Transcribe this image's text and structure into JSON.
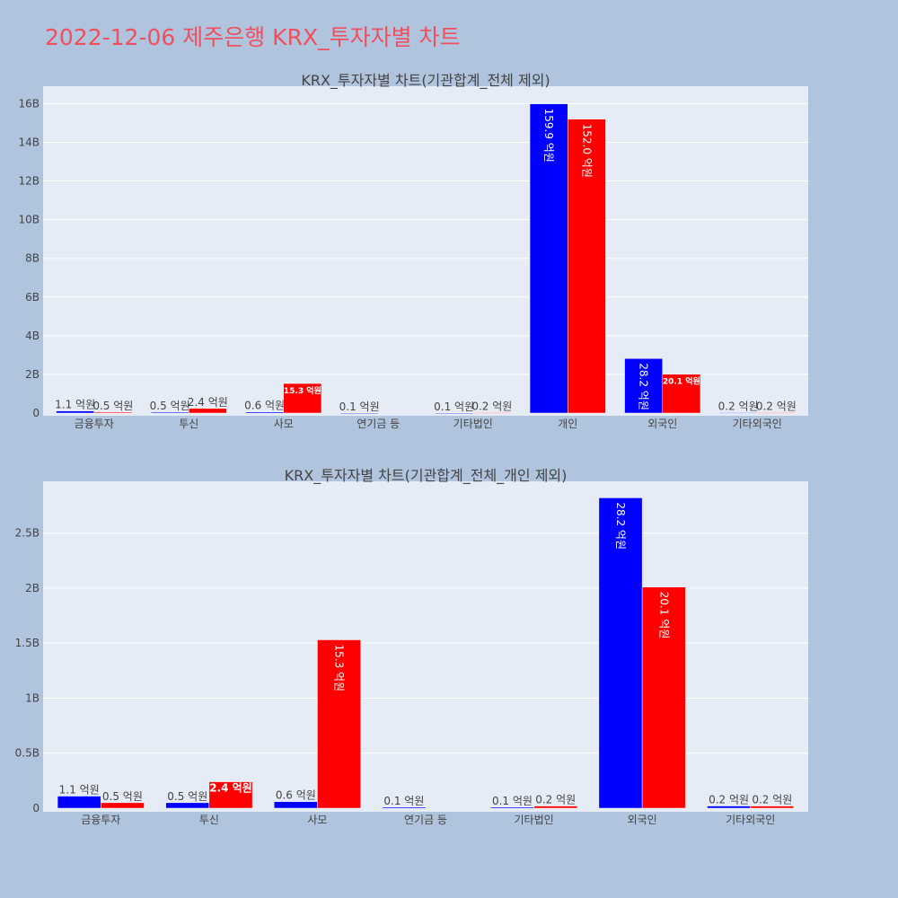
{
  "page": {
    "title": "2022-12-06 제주은행 KRX_투자자별 차트"
  },
  "colors": {
    "buy": "#0000ff",
    "sell": "#ff0000",
    "plot_bg": "#e5ecf6",
    "page_bg": "#b0c4de"
  },
  "chart_data": [
    {
      "type": "bar",
      "title": "KRX_투자자별 차트(기관합계_전체 제외)",
      "categories": [
        "금융투자",
        "투신",
        "사모",
        "연기금 등",
        "기타법인",
        "개인",
        "외국인",
        "기타외국인"
      ],
      "series": [
        {
          "values": [
            0.11,
            0.05,
            0.06,
            0.01,
            0.01,
            15.99,
            2.82,
            0.02
          ],
          "labels": [
            "1.1 억원",
            "0.5 억원",
            "0.6 억원",
            "0.1 억원",
            "0.1 억원",
            "159.9 억원",
            "28.2 억원",
            "0.2 억원"
          ]
        },
        {
          "values": [
            0.05,
            0.24,
            1.53,
            0,
            0.02,
            15.2,
            2.01,
            0.02
          ],
          "labels": [
            "0.5 억원",
            "2.4 억원",
            "15.3 억원",
            "",
            "0.2 억원",
            "152.0 억원",
            "20.1 억원",
            "0.2 억원"
          ]
        }
      ],
      "ylim": [
        0,
        16.9
      ],
      "yticks": [
        0,
        2,
        4,
        6,
        8,
        10,
        12,
        14,
        16
      ],
      "ytick_labels": [
        "0",
        "2B",
        "4B",
        "6B",
        "8B",
        "10B",
        "12B",
        "14B",
        "16B"
      ]
    },
    {
      "type": "bar",
      "title": "KRX_투자자별 차트(기관합계_전체_개인 제외)",
      "categories": [
        "금융투자",
        "투신",
        "사모",
        "연기금 등",
        "기타법인",
        "외국인",
        "기타외국인"
      ],
      "series": [
        {
          "values": [
            0.11,
            0.05,
            0.06,
            0.01,
            0.01,
            2.82,
            0.02
          ],
          "labels": [
            "1.1 억원",
            "0.5 억원",
            "0.6 억원",
            "0.1 억원",
            "0.1 억원",
            "28.2 억원",
            "0.2 억원"
          ]
        },
        {
          "values": [
            0.05,
            0.24,
            1.53,
            0,
            0.02,
            2.01,
            0.02
          ],
          "labels": [
            "0.5 억원",
            "2.4 억원",
            "15.3 억원",
            "",
            "0.2 억원",
            "20.1 억원",
            "0.2 억원"
          ]
        }
      ],
      "ylim": [
        0,
        2.97
      ],
      "yticks": [
        0,
        0.5,
        1,
        1.5,
        2,
        2.5
      ],
      "ytick_labels": [
        "0",
        "0.5B",
        "1B",
        "1.5B",
        "2B",
        "2.5B"
      ]
    }
  ]
}
